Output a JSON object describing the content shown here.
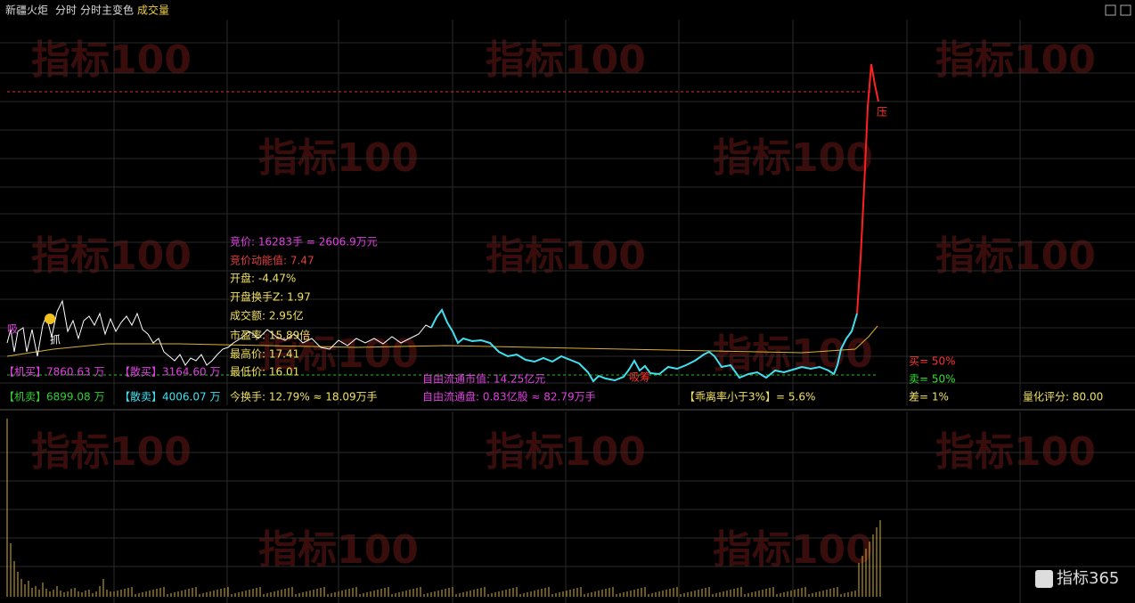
{
  "header": {
    "stock": "新疆火炬",
    "mode": "分时",
    "indicator": "分时主变色",
    "volume_tab": "成交量"
  },
  "watermark": "指标100",
  "brand": "指标365",
  "info": {
    "auction": "竞价: 16283手 = 2606.9万元",
    "auction_power": "竞价动能值: 7.47",
    "open": "开盘: -4.47%",
    "open_turnover": "开盘换手Z: 1.97",
    "amount": "成交额: 2.95亿",
    "pe": "市盈率: 15.89倍",
    "high": "最高价: 17.41",
    "low": "最低价: 16.01"
  },
  "flows": {
    "inst_buy": "【机买】7860.63 万",
    "retail_buy": "【散买】3164.60 万",
    "inst_sell": "【机卖】6899.08 万",
    "retail_sell": "【散卖】4006.07 万"
  },
  "stats": {
    "turnover": "今换手: 12.79% ≈ 18.09万手",
    "free_cap": "自由流通市值: 14.25亿元",
    "free_float": "自由流通盘: 0.83亿股 ≈ 82.79万手",
    "deviation": "【乖离率小于3%】= 5.6%",
    "buy": "买= 50%",
    "sell": "卖= 50%",
    "diff": "差= 1%",
    "score": "量化评分: 80.00"
  },
  "markers": {
    "press": "压",
    "absorb": "吸筹",
    "grab": "抓",
    "suck": "吸"
  }
}
